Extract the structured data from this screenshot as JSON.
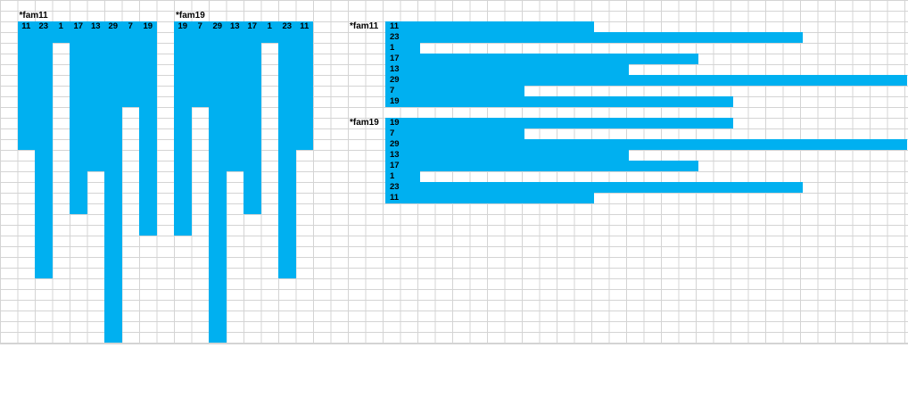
{
  "colors": {
    "bar": "#00b0f0",
    "grid": "#d4d4d4",
    "background": "#ffffff"
  },
  "chart_data": [
    {
      "type": "bar",
      "orientation": "vertical-down",
      "title": "*fam11",
      "categories": [
        "11",
        "23",
        "1",
        "17",
        "13",
        "29",
        "7",
        "19"
      ],
      "values": [
        11,
        23,
        1,
        17,
        13,
        29,
        7,
        19
      ]
    },
    {
      "type": "bar",
      "orientation": "vertical-down",
      "title": "*fam19",
      "categories": [
        "19",
        "7",
        "29",
        "13",
        "17",
        "1",
        "23",
        "11"
      ],
      "values": [
        19,
        7,
        29,
        13,
        17,
        1,
        23,
        11
      ]
    },
    {
      "type": "bar",
      "orientation": "horizontal",
      "title": "*fam11",
      "categories": [
        "11",
        "23",
        "1",
        "17",
        "13",
        "29",
        "7",
        "19"
      ],
      "values": [
        11,
        23,
        1,
        17,
        13,
        29,
        7,
        19
      ]
    },
    {
      "type": "bar",
      "orientation": "horizontal",
      "title": "*fam19",
      "categories": [
        "19",
        "7",
        "29",
        "13",
        "17",
        "1",
        "23",
        "11"
      ],
      "values": [
        19,
        7,
        29,
        13,
        17,
        1,
        23,
        11
      ]
    }
  ]
}
